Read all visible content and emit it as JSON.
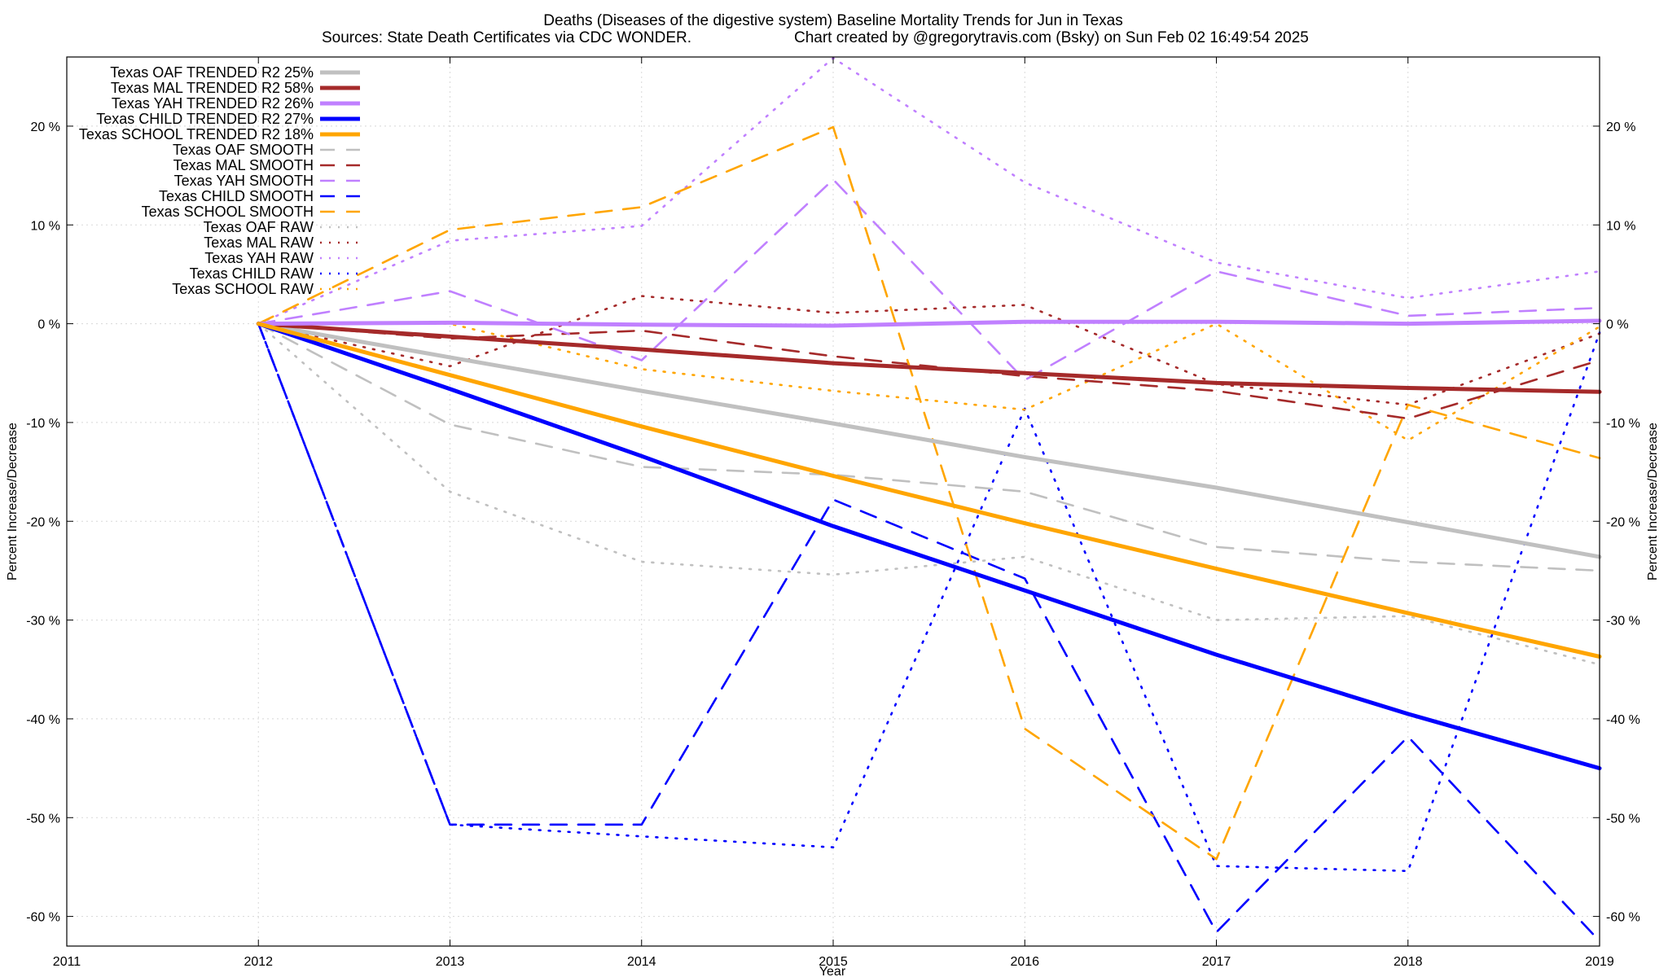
{
  "chart_data": {
    "type": "line",
    "title": "Deaths (Diseases of the digestive system)  Baseline Mortality Trends for Jun in Texas",
    "subtitle_left": "Sources: State Death Certificates via CDC WONDER.",
    "subtitle_right": "Chart created by @gregorytravis.com (Bsky) on Sun Feb 02 16:49:54 2025",
    "xlabel": "Year",
    "ylabel_left": "Percent Increase/Decrease",
    "ylabel_right": "Percent Increase/Decrease",
    "xlim": [
      2011,
      2019
    ],
    "ylim": [
      -63,
      27
    ],
    "grid": true,
    "legend_position": "top-left",
    "x_ticks": [
      {
        "value": 2011,
        "label": "2011"
      },
      {
        "value": 2012,
        "label": "2012"
      },
      {
        "value": 2013,
        "label": "2013"
      },
      {
        "value": 2014,
        "label": "2014"
      },
      {
        "value": 2015,
        "label": "2015"
      },
      {
        "value": 2016,
        "label": "2016"
      },
      {
        "value": 2017,
        "label": "2017"
      },
      {
        "value": 2018,
        "label": "2018"
      },
      {
        "value": 2019,
        "label": "2019"
      }
    ],
    "y_ticks": [
      {
        "value": 20,
        "label": "20 %"
      },
      {
        "value": 10,
        "label": "10 %"
      },
      {
        "value": 0,
        "label": "0 %"
      },
      {
        "value": -10,
        "label": "-10 %"
      },
      {
        "value": -20,
        "label": "-20 %"
      },
      {
        "value": -30,
        "label": "-30 %"
      },
      {
        "value": -40,
        "label": "-40 %"
      },
      {
        "value": -50,
        "label": "-50 %"
      },
      {
        "value": -60,
        "label": "-60 %"
      }
    ],
    "x": [
      2012,
      2013,
      2014,
      2015,
      2016,
      2017,
      2018,
      2019
    ],
    "series": [
      {
        "name": "Texas OAF TRENDED R2  25%",
        "style": "trend",
        "color": "#c0c0c0",
        "values": [
          0,
          -3.4,
          -6.8,
          -10.1,
          -13.5,
          -16.6,
          -20.1,
          -23.6
        ]
      },
      {
        "name": "Texas MAL TRENDED R2  58%",
        "style": "trend",
        "color": "#a52a2a",
        "values": [
          0,
          -1.3,
          -2.6,
          -4.0,
          -5.0,
          -6.0,
          -6.5,
          -6.9
        ]
      },
      {
        "name": "Texas YAH TRENDED R2  26%",
        "style": "trend",
        "color": "#c080ff",
        "values": [
          0,
          0.1,
          -0.1,
          -0.2,
          0.2,
          0.2,
          0.0,
          0.3
        ]
      },
      {
        "name": "Texas CHILD TRENDED R2  27%",
        "style": "trend",
        "color": "#0000ff",
        "values": [
          0,
          -6.6,
          -13.4,
          -20.5,
          -27.0,
          -33.5,
          -39.5,
          -45.0
        ]
      },
      {
        "name": "Texas SCHOOL TRENDED R2  18%",
        "style": "trend",
        "color": "#ffa500",
        "values": [
          0,
          -5.2,
          -10.4,
          -15.4,
          -20.2,
          -24.8,
          -29.3,
          -33.7
        ]
      },
      {
        "name": "Texas OAF SMOOTH",
        "style": "smooth",
        "color": "#c0c0c0",
        "values": [
          0,
          -10.2,
          -14.5,
          -15.3,
          -17.0,
          -22.6,
          -24.1,
          -25.0
        ]
      },
      {
        "name": "Texas MAL SMOOTH",
        "style": "smooth",
        "color": "#a52a2a",
        "values": [
          0,
          -1.5,
          -0.7,
          -3.3,
          -5.3,
          -6.8,
          -9.6,
          -3.7
        ]
      },
      {
        "name": "Texas YAH SMOOTH",
        "style": "smooth",
        "color": "#c080ff",
        "values": [
          0,
          3.3,
          -3.7,
          14.6,
          -5.7,
          5.3,
          0.8,
          1.6
        ]
      },
      {
        "name": "Texas CHILD SMOOTH",
        "style": "smooth",
        "color": "#0000ff",
        "values": [
          0,
          -50.7,
          -50.7,
          -17.8,
          -25.8,
          -61.6,
          -41.8,
          -62.5
        ]
      },
      {
        "name": "Texas SCHOOL SMOOTH",
        "style": "smooth",
        "color": "#ffa500",
        "values": [
          0,
          9.5,
          11.8,
          19.9,
          -41.0,
          -54.2,
          -8.2,
          -13.6
        ]
      },
      {
        "name": "Texas OAF RAW",
        "style": "raw",
        "color": "#c0c0c0",
        "values": [
          0,
          -17.0,
          -24.1,
          -25.4,
          -23.6,
          -30.0,
          -29.6,
          -34.5
        ]
      },
      {
        "name": "Texas MAL RAW",
        "style": "raw",
        "color": "#a52a2a",
        "values": [
          0,
          -4.3,
          2.8,
          1.1,
          1.9,
          -6.1,
          -8.2,
          -1.0
        ]
      },
      {
        "name": "Texas YAH RAW",
        "style": "raw",
        "color": "#c080ff",
        "values": [
          0,
          8.4,
          9.9,
          26.9,
          14.3,
          6.2,
          2.6,
          5.3
        ]
      },
      {
        "name": "Texas CHILD RAW",
        "style": "raw",
        "color": "#0000ff",
        "values": [
          0,
          -50.7,
          -51.9,
          -53.0,
          -8.6,
          -54.9,
          -55.4,
          -0.9
        ]
      },
      {
        "name": "Texas SCHOOL RAW",
        "style": "raw",
        "color": "#ffa500",
        "values": [
          0,
          0.0,
          -4.6,
          -6.8,
          -8.7,
          0.0,
          -11.8,
          -0.3
        ]
      }
    ],
    "extra_lines": [
      {
        "color": "#0000ff",
        "style": "dashdot",
        "x": [
          2012,
          2013
        ],
        "values": [
          0,
          -50.7
        ]
      }
    ]
  }
}
